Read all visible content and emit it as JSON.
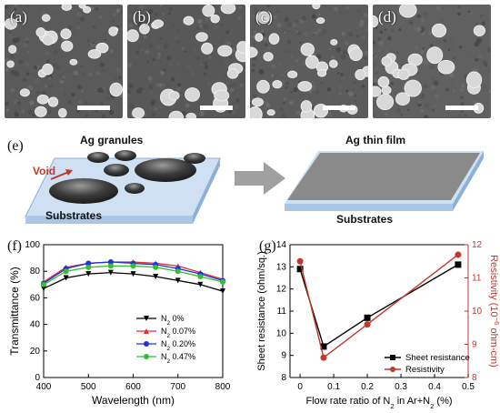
{
  "panels": {
    "a": "(a)",
    "b": "(b)",
    "c": "(c)",
    "d": "(d)",
    "e": "(e)",
    "f": "(f)",
    "g": "(g)"
  },
  "schematic": {
    "left_title": "Ag granules",
    "left_substrate": "Substrates",
    "void_label": "Void",
    "right_title": "Ag thin film",
    "right_substrate": "Substrates"
  },
  "chart_data": [
    {
      "type": "line",
      "panel": "(f)",
      "xlabel": "Wavelength (nm)",
      "ylabel": "Transmittance (%)",
      "xlim": [
        400,
        800
      ],
      "ylim": [
        0,
        100
      ],
      "xticks": [
        "400",
        "500",
        "600",
        "700",
        "800"
      ],
      "yticks": [
        "0",
        "20",
        "40",
        "60",
        "80",
        "100"
      ],
      "legend_position": "bottom-right",
      "x": [
        400,
        450,
        500,
        550,
        600,
        650,
        700,
        750,
        800
      ],
      "series": [
        {
          "name": "N2 0%",
          "color": "#000000",
          "marker": "triangle-down",
          "values": [
            67,
            75,
            78,
            79,
            78,
            76,
            73,
            70,
            65
          ]
        },
        {
          "name": "N2 0.07%",
          "color": "#e03030",
          "marker": "triangle-up",
          "values": [
            72,
            83,
            86,
            87,
            87,
            86,
            84,
            79,
            74
          ]
        },
        {
          "name": "N2 0.20%",
          "color": "#2030e0",
          "marker": "circle",
          "values": [
            71,
            82,
            86,
            87,
            86,
            85,
            82,
            78,
            73
          ]
        },
        {
          "name": "N2 0.47%",
          "color": "#30c030",
          "marker": "circle",
          "values": [
            70,
            80,
            83,
            84,
            84,
            83,
            80,
            76,
            72
          ]
        }
      ],
      "legend_labels": [
        {
          "pre": "N",
          "sub": "2",
          "post": " 0%"
        },
        {
          "pre": "N",
          "sub": "2",
          "post": " 0.07%"
        },
        {
          "pre": "N",
          "sub": "2",
          "post": " 0.20%"
        },
        {
          "pre": "N",
          "sub": "2",
          "post": " 0.47%"
        }
      ]
    },
    {
      "type": "line",
      "panel": "(g)",
      "xlabel_parts": {
        "pre": "Flow rate ratio of N",
        "sub1": "2",
        "mid": " in Ar+N",
        "sub2": "2",
        "post": " (%)"
      },
      "ylabel_left": "Sheet resistance (ohm/sq.)",
      "ylabel_right_parts": {
        "pre": "Resistivity (10",
        "sup": "−6",
        "post": " ohm-cm)"
      },
      "xlim": [
        -0.03,
        0.5
      ],
      "ylim_left": [
        8,
        14
      ],
      "ylim_right": [
        8,
        12
      ],
      "xticks": [
        "0",
        "0.1",
        "0.2",
        "0.3",
        "0.4",
        "0.5"
      ],
      "xtick_values": [
        0,
        0.1,
        0.2,
        0.3,
        0.4,
        0.5
      ],
      "yticks_left": [
        "8",
        "9",
        "10",
        "11",
        "12",
        "13",
        "14"
      ],
      "yticks_right": [
        "8",
        "9",
        "10",
        "11",
        "12"
      ],
      "x": [
        0,
        0.07,
        0.2,
        0.47
      ],
      "series": [
        {
          "name": "Sheet resistance",
          "axis": "left",
          "color": "#000000",
          "marker": "square",
          "values": [
            12.9,
            9.4,
            10.7,
            13.1
          ]
        },
        {
          "name": "Resistivity",
          "axis": "right",
          "color": "#c0392b",
          "marker": "circle",
          "values": [
            11.5,
            8.6,
            9.6,
            11.7
          ]
        }
      ]
    }
  ]
}
